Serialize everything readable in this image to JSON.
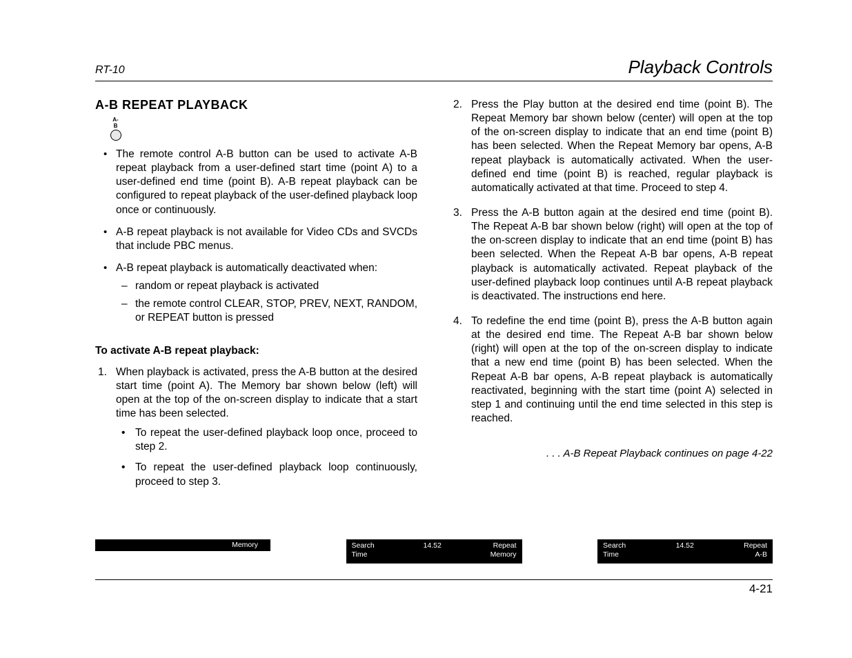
{
  "header": {
    "left": "RT-10",
    "right": "Playback Controls"
  },
  "section_title": "A-B REPEAT PLAYBACK",
  "ab_button_label": "A-B",
  "left_bullets": [
    "The remote control A-B button can be used to activate A-B repeat playback from a user-defined start time (point A) to a user-defined end time (point B). A-B repeat playback can be configured to repeat playback of the user-defined playback loop once or continuously.",
    "A-B repeat playback is not available for Video CDs and SVCDs that include PBC menus.",
    "A-B repeat playback is automatically deactivated when:"
  ],
  "dash_sublist": [
    "random or repeat playback is activated",
    "the remote control CLEAR, STOP, PREV, NEXT, RANDOM, or REPEAT button is pressed"
  ],
  "subhead": "To activate A-B repeat playback:",
  "step1": {
    "marker": "1.",
    "text": "When playback is activated, press the A-B button at the desired start time (point A). The Memory bar shown below (left) will open at the top of the on-screen display to indicate that a start time has been selected.",
    "subs": [
      "To repeat the user-defined playback loop once, proceed to step 2.",
      "To repeat the user-defined playback loop continuously, proceed to step 3."
    ]
  },
  "right_steps": [
    {
      "marker": "2.",
      "text": "Press the Play button at the desired end time (point B). The Repeat Memory bar shown below (center) will open at the top of the on-screen display to indicate that an end time (point B) has been selected. When the Repeat Memory bar opens, A-B repeat playback is automatically activated. When the user-defined end time (point B) is reached, regular playback is automatically activated at that time. Proceed to step 4."
    },
    {
      "marker": "3.",
      "text": "Press the A-B button again at the desired end time (point B). The Repeat A-B bar shown below (right) will open at the top of the on-screen display to indicate that an end time (point B) has been selected. When the Repeat A-B bar opens, A-B repeat playback is automatically activated. Repeat playback of the user-defined playback loop continues until A-B repeat playback is deactivated. The instructions end here."
    },
    {
      "marker": "4.",
      "text": "To redefine the end time (point B), press the A-B button again at the desired end time. The Repeat A-B bar shown below (right) will open at the top of the on-screen display to indicate that a new end time (point B) has been selected. When the Repeat A-B bar opens, A-B repeat playback is automatically reactivated, beginning with the start time (point A) selected in step 1 and continuing until the end time selected in this step is reached."
    }
  ],
  "continuation": ". . . A-B Repeat Playback continues on page 4-22",
  "bars": {
    "bar1": {
      "right": "Memory"
    },
    "bar2": {
      "left_top": "Search",
      "left_bottom": "Time",
      "center": "14.52",
      "right_top": "Repeat",
      "right_bottom": "Memory"
    },
    "bar3": {
      "left_top": "Search",
      "left_bottom": "Time",
      "center": "14.52",
      "right_top": "Repeat",
      "right_bottom": "A-B"
    }
  },
  "page_number": "4-21",
  "colors": {
    "text": "#000000",
    "background": "#ffffff",
    "bar_bg": "#000000",
    "bar_text": "#ffffff",
    "icon_fill": "#e8e8e8"
  },
  "typography": {
    "body_fontsize_pt": 11.5,
    "title_fontsize_pt": 13,
    "header_right_fontsize_pt": 19,
    "header_left_fontsize_pt": 12,
    "bar_fontsize_pt": 8
  }
}
